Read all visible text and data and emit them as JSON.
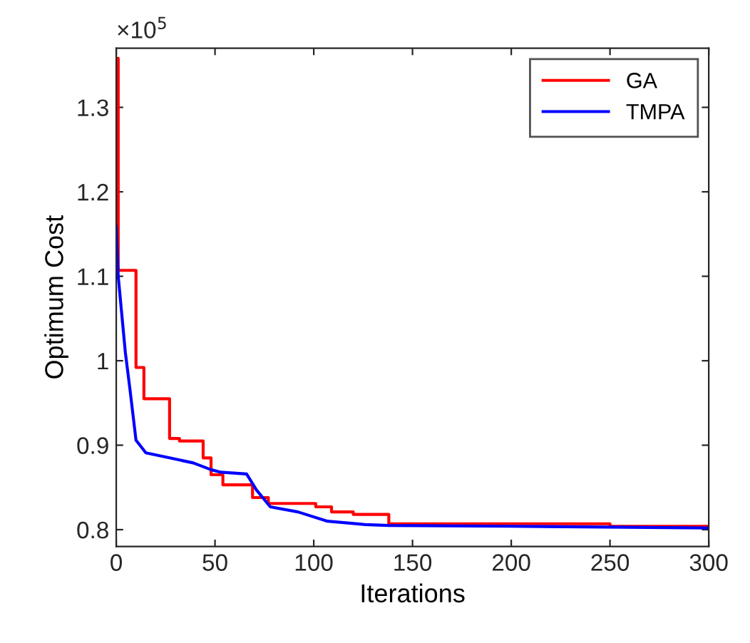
{
  "chart_data": {
    "type": "line",
    "xlabel": "Iterations",
    "ylabel": "Optimum Cost",
    "annotations": [
      "×10$^{5}$"
    ],
    "xlim": [
      0,
      300
    ],
    "xticks": [
      0,
      50,
      100,
      150,
      200,
      250,
      300
    ],
    "ylim": [
      0.78,
      1.37
    ],
    "yticks": [
      0.8,
      0.9,
      1,
      1.1,
      1.2,
      1.3
    ],
    "grid": false,
    "legend": "top right",
    "series": [
      {
        "name": "GA",
        "type": "step",
        "color": "#ff0000",
        "x": [
          0,
          1,
          10,
          14,
          27,
          32,
          44,
          48,
          54,
          69,
          77,
          101,
          109,
          120,
          138,
          250,
          300
        ],
        "values": [
          1.358,
          1.107,
          0.992,
          0.955,
          0.908,
          0.905,
          0.885,
          0.865,
          0.853,
          0.838,
          0.831,
          0.827,
          0.821,
          0.818,
          0.807,
          0.804,
          0.804
        ]
      },
      {
        "name": "TMPA",
        "color": "#0000ff",
        "x": [
          0,
          1,
          4.6,
          7,
          10,
          15,
          27,
          39,
          48,
          53,
          66,
          71,
          78,
          92,
          107,
          126,
          138,
          200,
          300
        ],
        "values": [
          1.159,
          1.1,
          1.01,
          0.965,
          0.906,
          0.891,
          0.885,
          0.879,
          0.871,
          0.868,
          0.866,
          0.847,
          0.827,
          0.821,
          0.81,
          0.806,
          0.805,
          0.804,
          0.802
        ]
      }
    ]
  }
}
